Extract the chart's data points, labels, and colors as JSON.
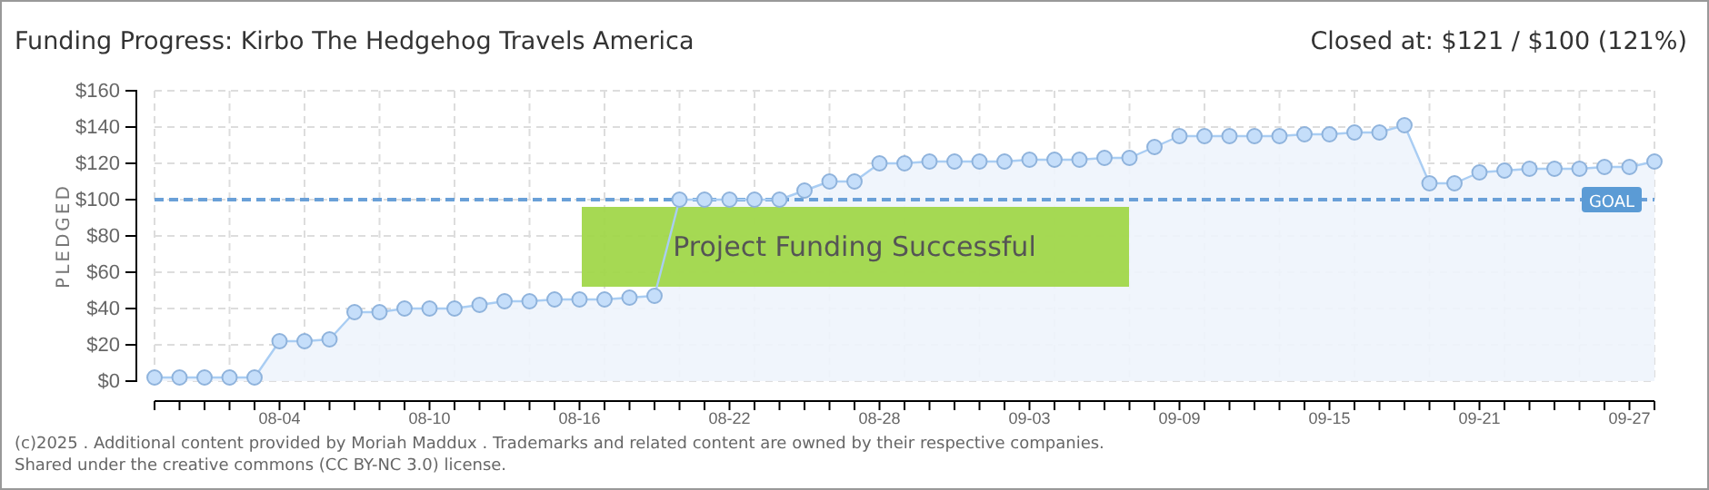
{
  "chart_data": {
    "type": "area",
    "title": "Funding Progress: Kirbo The Hedgehog Travels America",
    "subtitle": "Closed at: $121 / $100 (121%)",
    "ylabel": "PLEDGED",
    "categories": [
      null,
      null,
      null,
      null,
      null,
      "08-04",
      null,
      null,
      null,
      null,
      null,
      "08-10",
      null,
      null,
      null,
      null,
      null,
      "08-16",
      null,
      null,
      null,
      null,
      null,
      "08-22",
      null,
      null,
      null,
      null,
      null,
      "08-28",
      null,
      null,
      null,
      null,
      null,
      "09-03",
      null,
      null,
      null,
      null,
      null,
      "09-09",
      null,
      null,
      null,
      null,
      null,
      "09-15",
      null,
      null,
      null,
      null,
      null,
      "09-21",
      null,
      null,
      null,
      null,
      null,
      "09-27",
      null
    ],
    "series": [
      {
        "color": "#a9cdf3",
        "values": [
          2,
          2,
          2,
          2,
          2,
          22,
          22,
          23,
          38,
          38,
          40,
          40,
          40,
          42,
          44,
          44,
          45,
          45,
          45,
          46,
          47,
          100,
          100,
          100,
          100,
          100,
          105,
          110,
          110,
          120,
          120,
          121,
          121,
          121,
          121,
          122,
          122,
          122,
          123,
          123,
          129,
          135,
          135,
          135,
          135,
          135,
          136,
          136,
          137,
          137,
          141,
          109,
          109,
          115,
          116,
          117,
          117,
          117,
          118,
          118,
          121
        ]
      }
    ],
    "ylim": [
      0,
      160
    ],
    "yticks": [
      {
        "value": 0,
        "label": "$0"
      },
      {
        "value": 20,
        "label": "$20"
      },
      {
        "value": 40,
        "label": "$40"
      },
      {
        "value": 60,
        "label": "$60"
      },
      {
        "value": 80,
        "label": "$80"
      },
      {
        "value": 100,
        "label": "$100"
      },
      {
        "value": 120,
        "label": "$120"
      },
      {
        "value": 140,
        "label": "$140"
      },
      {
        "value": 160,
        "label": "$160"
      }
    ],
    "grid": true,
    "marker": "circle",
    "ref_lines": [
      {
        "axis": "y",
        "value": 100,
        "label": "GOAL",
        "color": "#6aa0d8",
        "line_style": "dashed"
      }
    ],
    "annotations": [
      "Project Funding Successful",
      "(c)2025 . Additional content provided by Moriah Maddux . Trademarks and related content are owned by their respective companies.",
      "Shared under the creative commons (CC BY-NC 3.0) license."
    ]
  }
}
